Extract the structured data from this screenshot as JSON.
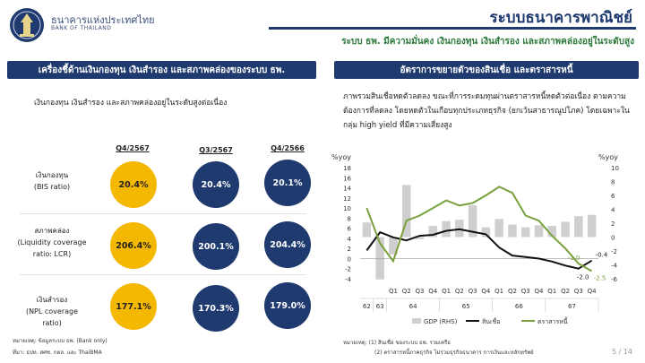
{
  "header": {
    "bank_name_th": "ธนาคารแห่งประเทศไทย",
    "bank_name_en": "BANK OF THAILAND",
    "main_title": "ระบบธนาคารพาณิชย์",
    "subtitle": "ระบบ ธพ. มีความมั่นคง เงินกองทุน เงินสำรอง และสภาพคล่องอยู่ในระดับสูง"
  },
  "left_panel": {
    "title": "เครื่องชี้ด้านเงินกองทุน เงินสำรอง และสภาพคล่องของระบบ ธพ.",
    "subtitle": "เงินกองทุน เงินสำรอง และสภาพคล่องอยู่ในระดับสูงต่อเนื่อง",
    "columns": [
      "Q4/2567",
      "Q3/2567",
      "Q4/2566"
    ],
    "rows": [
      {
        "label_lines": [
          "เงินกองทุน",
          "(BIS ratio)"
        ],
        "values": [
          "20.4%",
          "20.4%",
          "20.1%"
        ]
      },
      {
        "label_lines": [
          "สภาพคล่อง",
          "(Liquidity coverage",
          "ratio: LCR)"
        ],
        "values": [
          "206.4%",
          "200.1%",
          "204.4%"
        ]
      },
      {
        "label_lines": [
          "เงินสำรอง",
          "(NPL coverage ratio)"
        ],
        "values": [
          "177.1%",
          "170.3%",
          "179.0%"
        ]
      }
    ],
    "note": "หมายเหตุ: ข้อมูลระบบ ธพ. (Bank only)",
    "source": "ที่มา: ธปท. สศช. กตล. และ ThaiBMA"
  },
  "right_panel": {
    "title": "อัตราการขยายตัวของสินเชื่อ และตราสารหนี้",
    "description": "ภาพรวมสินเชื่อหดตัวลดลง ขณะที่การระดมทุนผ่านตราสารหนี้หดตัวต่อเนื่อง ตามความต้องการที่ลดลง โดยหดตัวในเกือบทุกประเภทธุรกิจ (ยกเว้นสาธารณูปโภค) โดยเฉพาะในกลุ่ม high yield ที่มีความเสี่ยงสูง",
    "note1": "หมายเหตุ: (1) สินเชื่อ ของระบบ ธพ. รวมเครือ",
    "note2": "(2) ตราสารหนี้ภาคธุรกิจ ไม่รวมธุรกิจธนาคาร การเงินและหลักทรัพย์"
  },
  "colors": {
    "navy": "#1f3a6e",
    "gold": "#f5b800",
    "green": "#2c7a3b",
    "credit_line": "#111111",
    "bond_line": "#78a03c",
    "gdp_bar": "#cfcfcf"
  },
  "chart_data": {
    "type": "bar",
    "title": "",
    "ylabel_left": "%yoy",
    "ylabel_right": "%yoy",
    "ylim_left": [
      -4,
      18
    ],
    "ylim_right": [
      -6,
      10
    ],
    "yticks_left": [
      -4,
      -2,
      0,
      2,
      4,
      6,
      8,
      10,
      12,
      14,
      16,
      18
    ],
    "yticks_right": [
      -6,
      -4,
      -2,
      0,
      2,
      4,
      6,
      8,
      10
    ],
    "categories": [
      "62",
      "63",
      "Q1",
      "Q2",
      "Q3",
      "Q4",
      "Q1",
      "Q2",
      "Q3",
      "Q4",
      "Q1",
      "Q2",
      "Q3",
      "Q4",
      "Q1",
      "Q2",
      "Q3",
      "Q4"
    ],
    "year_labels": [
      {
        "label": "62",
        "span": [
          0,
          0
        ]
      },
      {
        "label": "63",
        "span": [
          1,
          1
        ]
      },
      {
        "label": "64",
        "span": [
          2,
          5
        ]
      },
      {
        "label": "65",
        "span": [
          6,
          9
        ]
      },
      {
        "label": "66",
        "span": [
          10,
          13
        ]
      },
      {
        "label": "67",
        "span": [
          14,
          17
        ]
      }
    ],
    "series": [
      {
        "name": "GDP (RHS)",
        "type": "bar",
        "axis": "right",
        "values": [
          2.1,
          -6.1,
          -2.5,
          7.5,
          -0.3,
          1.6,
          2.3,
          2.5,
          4.6,
          1.4,
          2.6,
          1.8,
          1.4,
          1.7,
          1.6,
          2.2,
          3.0,
          3.2
        ]
      },
      {
        "name": "สินเชื่อ",
        "type": "line",
        "axis": "left",
        "values": [
          1.6,
          5.2,
          4.2,
          3.6,
          4.5,
          4.7,
          5.5,
          5.8,
          5.3,
          4.8,
          2.2,
          0.6,
          0.3,
          0.0,
          -0.6,
          -1.4,
          -2.0,
          -0.4
        ]
      },
      {
        "name": "ตราสารหนี้",
        "type": "line",
        "axis": "left",
        "values": [
          10.0,
          3.0,
          -0.5,
          7.5,
          8.5,
          10.0,
          11.5,
          10.5,
          11.0,
          12.5,
          14.2,
          13.0,
          8.5,
          7.5,
          4.5,
          2.0,
          -1.0,
          -2.5
        ]
      }
    ],
    "annotations": [
      {
        "text": "-1.0",
        "series": "ตราสารหนี้",
        "index": 16
      },
      {
        "text": "-2.5",
        "series": "ตราสารหนี้",
        "index": 17
      },
      {
        "text": "-2.0",
        "series": "สินเชื่อ",
        "index": 16
      },
      {
        "text": "-0.4",
        "series": "สินเชื่อ",
        "index": 17
      }
    ],
    "legend_position": "bottom"
  },
  "page": {
    "number": "5 / 14"
  }
}
